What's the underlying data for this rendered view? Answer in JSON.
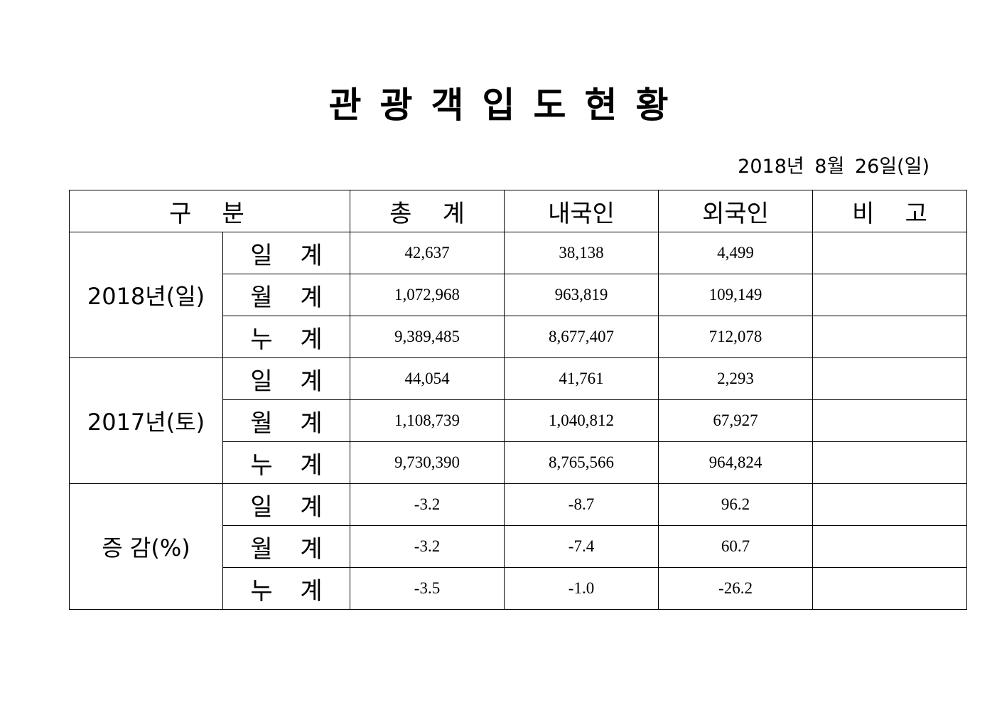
{
  "title": "관광객입도현황",
  "date": "2018년 8월 26일(일)",
  "table": {
    "headers": [
      "구    분",
      "총    계",
      "내국인",
      "외국인",
      "비    고"
    ],
    "groups": [
      {
        "label": "2018년(일)",
        "rows": [
          {
            "label": "일 계",
            "total": "42,637",
            "domestic": "38,138",
            "foreign": "4,499",
            "note": ""
          },
          {
            "label": "월 계",
            "total": "1,072,968",
            "domestic": "963,819",
            "foreign": "109,149",
            "note": ""
          },
          {
            "label": "누 계",
            "total": "9,389,485",
            "domestic": "8,677,407",
            "foreign": "712,078",
            "note": ""
          }
        ]
      },
      {
        "label": "2017년(토)",
        "rows": [
          {
            "label": "일 계",
            "total": "44,054",
            "domestic": "41,761",
            "foreign": "2,293",
            "note": ""
          },
          {
            "label": "월 계",
            "total": "1,108,739",
            "domestic": "1,040,812",
            "foreign": "67,927",
            "note": ""
          },
          {
            "label": "누 계",
            "total": "9,730,390",
            "domestic": "8,765,566",
            "foreign": "964,824",
            "note": ""
          }
        ]
      },
      {
        "label": "증 감(%)",
        "rows": [
          {
            "label": "일 계",
            "total": "-3.2",
            "domestic": "-8.7",
            "foreign": "96.2",
            "note": ""
          },
          {
            "label": "월 계",
            "total": "-3.2",
            "domestic": "-7.4",
            "foreign": "60.7",
            "note": ""
          },
          {
            "label": "누 계",
            "total": "-3.5",
            "domestic": "-1.0",
            "foreign": "-26.2",
            "note": ""
          }
        ]
      }
    ]
  }
}
